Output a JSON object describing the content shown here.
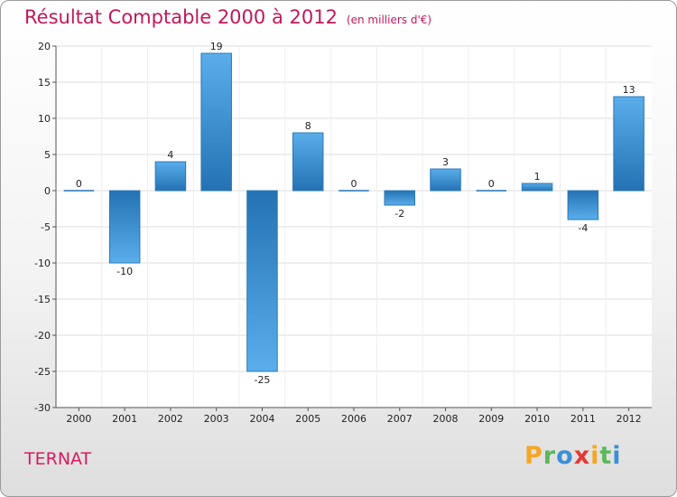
{
  "title": "Résultat Comptable 2000 à 2012",
  "unit": "(en milliers d'€)",
  "city": "TERNAT",
  "brand": {
    "letters": [
      "P",
      "r",
      "o",
      "x",
      "i",
      "t",
      "i"
    ],
    "colors": [
      "#f5a623",
      "#5cb85c",
      "#3b8fd8",
      "#e53935",
      "#f5a623",
      "#5cb85c",
      "#3b8fd8"
    ]
  },
  "colors": {
    "title": "#c2185b",
    "bar_light": "#5aaeea",
    "bar_dark": "#2472b4",
    "grid": "#dddddd"
  },
  "chart_data": {
    "type": "bar",
    "title": "Résultat Comptable 2000 à 2012",
    "subtitle": "(en milliers d'€)",
    "xlabel": "",
    "ylabel": "",
    "ylim": [
      -30,
      20
    ],
    "yticks": [
      20,
      15,
      10,
      5,
      0,
      -5,
      -10,
      -15,
      -20,
      -25,
      -30
    ],
    "grid": true,
    "categories": [
      "2000",
      "2001",
      "2002",
      "2003",
      "2004",
      "2005",
      "2006",
      "2007",
      "2008",
      "2009",
      "2010",
      "2011",
      "2012"
    ],
    "values": [
      0,
      -10,
      4,
      19,
      -25,
      8,
      0,
      -2,
      3,
      0,
      1,
      -4,
      13
    ]
  }
}
